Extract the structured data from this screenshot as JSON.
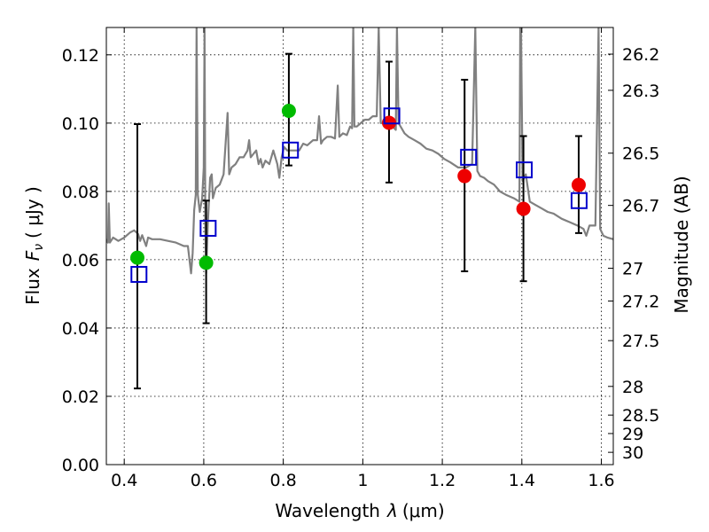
{
  "chart_data": {
    "type": "scatter",
    "xlabel": "Wavelength",
    "xlabel_symbol": "λ",
    "xlabel_unit": "(μm)",
    "ylabel": "Flux",
    "ylabel_symbol": "F",
    "ylabel_symbol_sub": "ν",
    "ylabel_unit": "( μJy )",
    "y2label": "Magnitude (AB)",
    "xlim": [
      0.355,
      1.63
    ],
    "ylim": [
      0.0,
      0.128
    ],
    "grid": true,
    "x_ticks": [
      0.4,
      0.6,
      0.8,
      1.0,
      1.2,
      1.4,
      1.6
    ],
    "x_tick_labels": [
      "0.4",
      "0.6",
      "0.8",
      "1",
      "1.2",
      "1.4",
      "1.6"
    ],
    "y_ticks": [
      0.0,
      0.02,
      0.04,
      0.06,
      0.08,
      0.1,
      0.12
    ],
    "y_tick_labels": [
      "0.00",
      "0.02",
      "0.04",
      "0.06",
      "0.08",
      "0.10",
      "0.12"
    ],
    "y2_ticks": [
      {
        "mag": "26.2",
        "flux": 0.1202
      },
      {
        "mag": "26.3",
        "flux": 0.1096
      },
      {
        "mag": "26.5",
        "flux": 0.0912
      },
      {
        "mag": "26.7",
        "flux": 0.0759
      },
      {
        "mag": "27",
        "flux": 0.0575
      },
      {
        "mag": "27.2",
        "flux": 0.0479
      },
      {
        "mag": "27.5",
        "flux": 0.0363
      },
      {
        "mag": "28",
        "flux": 0.0229
      },
      {
        "mag": "28.5",
        "flux": 0.0145
      },
      {
        "mag": "29",
        "flux": 0.0091
      },
      {
        "mag": "30",
        "flux": 0.0036
      }
    ],
    "series": [
      {
        "kind": "errorbar",
        "color": "#000000",
        "points": [
          {
            "x": 0.433,
            "lo": 0.0223,
            "hi": 0.0997
          },
          {
            "x": 0.606,
            "lo": 0.0414,
            "hi": 0.0773
          },
          {
            "x": 0.814,
            "lo": 0.0876,
            "hi": 0.1203
          },
          {
            "x": 1.066,
            "lo": 0.0826,
            "hi": 0.118
          },
          {
            "x": 1.256,
            "lo": 0.0566,
            "hi": 0.1127
          },
          {
            "x": 1.404,
            "lo": 0.0537,
            "hi": 0.0962
          },
          {
            "x": 1.543,
            "lo": 0.0678,
            "hi": 0.0962
          }
        ]
      },
      {
        "kind": "circles",
        "color": "#00bb00",
        "points": [
          {
            "x": 0.433,
            "y": 0.0606
          },
          {
            "x": 0.606,
            "y": 0.0591
          },
          {
            "x": 0.814,
            "y": 0.1036
          }
        ]
      },
      {
        "kind": "circles",
        "color": "#ee0000",
        "points": [
          {
            "x": 1.066,
            "y": 0.1001
          },
          {
            "x": 1.256,
            "y": 0.0845
          },
          {
            "x": 1.404,
            "y": 0.0749
          },
          {
            "x": 1.543,
            "y": 0.0819
          }
        ]
      },
      {
        "kind": "open-squares",
        "color": "#0000cc",
        "points": [
          {
            "x": 0.437,
            "y": 0.0557
          },
          {
            "x": 0.611,
            "y": 0.0692
          },
          {
            "x": 0.818,
            "y": 0.0921
          },
          {
            "x": 1.073,
            "y": 0.1021
          },
          {
            "x": 1.266,
            "y": 0.09
          },
          {
            "x": 1.406,
            "y": 0.0863
          },
          {
            "x": 1.544,
            "y": 0.0773
          }
        ]
      },
      {
        "kind": "model-spectrum",
        "color": "#808080",
        "points": [
          [
            0.355,
            0.066
          ],
          [
            0.359,
            0.065
          ],
          [
            0.361,
            0.0765
          ],
          [
            0.364,
            0.065
          ],
          [
            0.372,
            0.0665
          ],
          [
            0.385,
            0.0655
          ],
          [
            0.4,
            0.0665
          ],
          [
            0.415,
            0.068
          ],
          [
            0.425,
            0.0686
          ],
          [
            0.435,
            0.0675
          ],
          [
            0.44,
            0.0655
          ],
          [
            0.445,
            0.0672
          ],
          [
            0.455,
            0.064
          ],
          [
            0.46,
            0.0665
          ],
          [
            0.47,
            0.066
          ],
          [
            0.49,
            0.066
          ],
          [
            0.51,
            0.0655
          ],
          [
            0.53,
            0.065
          ],
          [
            0.55,
            0.064
          ],
          [
            0.56,
            0.064
          ],
          [
            0.568,
            0.056
          ],
          [
            0.572,
            0.062
          ],
          [
            0.576,
            0.0745
          ],
          [
            0.58,
            0.079
          ],
          [
            0.582,
            0.128
          ],
          [
            0.585,
            0.079
          ],
          [
            0.59,
            0.074
          ],
          [
            0.596,
            0.078
          ],
          [
            0.6,
            0.087
          ],
          [
            0.602,
            0.128
          ],
          [
            0.604,
            0.069
          ],
          [
            0.606,
            0.056
          ],
          [
            0.61,
            0.07
          ],
          [
            0.616,
            0.084
          ],
          [
            0.62,
            0.085
          ],
          [
            0.623,
            0.078
          ],
          [
            0.63,
            0.081
          ],
          [
            0.64,
            0.082
          ],
          [
            0.65,
            0.085
          ],
          [
            0.66,
            0.103
          ],
          [
            0.664,
            0.085
          ],
          [
            0.67,
            0.087
          ],
          [
            0.68,
            0.088
          ],
          [
            0.69,
            0.09
          ],
          [
            0.7,
            0.09
          ],
          [
            0.71,
            0.092
          ],
          [
            0.714,
            0.095
          ],
          [
            0.718,
            0.09
          ],
          [
            0.725,
            0.091
          ],
          [
            0.732,
            0.092
          ],
          [
            0.738,
            0.088
          ],
          [
            0.743,
            0.0895
          ],
          [
            0.748,
            0.087
          ],
          [
            0.755,
            0.089
          ],
          [
            0.765,
            0.088
          ],
          [
            0.775,
            0.092
          ],
          [
            0.785,
            0.088
          ],
          [
            0.79,
            0.084
          ],
          [
            0.796,
            0.09
          ],
          [
            0.802,
            0.093
          ],
          [
            0.81,
            0.092
          ],
          [
            0.825,
            0.092
          ],
          [
            0.84,
            0.092
          ],
          [
            0.85,
            0.094
          ],
          [
            0.86,
            0.0935
          ],
          [
            0.875,
            0.095
          ],
          [
            0.885,
            0.095
          ],
          [
            0.89,
            0.102
          ],
          [
            0.895,
            0.094
          ],
          [
            0.9,
            0.095
          ],
          [
            0.91,
            0.096
          ],
          [
            0.92,
            0.096
          ],
          [
            0.93,
            0.0955
          ],
          [
            0.937,
            0.111
          ],
          [
            0.941,
            0.096
          ],
          [
            0.95,
            0.097
          ],
          [
            0.96,
            0.0965
          ],
          [
            0.968,
            0.099
          ],
          [
            0.973,
            0.0985
          ],
          [
            0.976,
            0.128
          ],
          [
            0.979,
            0.099
          ],
          [
            0.985,
            0.099
          ],
          [
            0.995,
            0.1
          ],
          [
            1.005,
            0.101
          ],
          [
            1.015,
            0.101
          ],
          [
            1.025,
            0.102
          ],
          [
            1.035,
            0.102
          ],
          [
            1.04,
            0.128
          ],
          [
            1.045,
            0.1
          ],
          [
            1.055,
            0.1
          ],
          [
            1.065,
            0.0995
          ],
          [
            1.075,
            0.099
          ],
          [
            1.083,
            0.098
          ],
          [
            1.086,
            0.128
          ],
          [
            1.09,
            0.1
          ],
          [
            1.095,
            0.099
          ],
          [
            1.105,
            0.097
          ],
          [
            1.115,
            0.096
          ],
          [
            1.13,
            0.095
          ],
          [
            1.145,
            0.094
          ],
          [
            1.16,
            0.0925
          ],
          [
            1.175,
            0.092
          ],
          [
            1.19,
            0.091
          ],
          [
            1.205,
            0.0895
          ],
          [
            1.22,
            0.0885
          ],
          [
            1.24,
            0.087
          ],
          [
            1.26,
            0.087
          ],
          [
            1.275,
            0.088
          ],
          [
            1.283,
            0.128
          ],
          [
            1.288,
            0.086
          ],
          [
            1.295,
            0.0845
          ],
          [
            1.305,
            0.084
          ],
          [
            1.315,
            0.083
          ],
          [
            1.33,
            0.082
          ],
          [
            1.345,
            0.08
          ],
          [
            1.36,
            0.079
          ],
          [
            1.38,
            0.078
          ],
          [
            1.394,
            0.077
          ],
          [
            1.396,
            0.128
          ],
          [
            1.398,
            0.128
          ],
          [
            1.402,
            0.083
          ],
          [
            1.41,
            0.085
          ],
          [
            1.42,
            0.077
          ],
          [
            1.435,
            0.076
          ],
          [
            1.45,
            0.075
          ],
          [
            1.465,
            0.074
          ],
          [
            1.48,
            0.0735
          ],
          [
            1.5,
            0.072
          ],
          [
            1.52,
            0.071
          ],
          [
            1.54,
            0.07
          ],
          [
            1.555,
            0.069
          ],
          [
            1.562,
            0.067
          ],
          [
            1.57,
            0.07
          ],
          [
            1.585,
            0.07
          ],
          [
            1.593,
            0.128
          ],
          [
            1.597,
            0.069
          ],
          [
            1.605,
            0.067
          ],
          [
            1.615,
            0.0665
          ],
          [
            1.63,
            0.066
          ]
        ]
      }
    ]
  }
}
